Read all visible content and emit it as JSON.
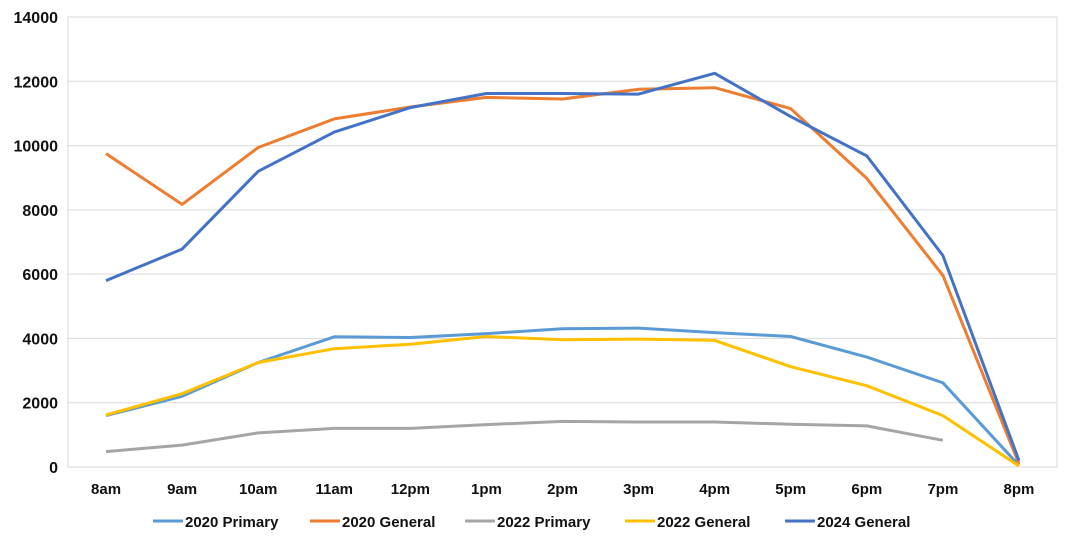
{
  "chart_data": {
    "type": "line",
    "title": "",
    "xlabel": "",
    "ylabel": "",
    "ylim": [
      0,
      14000
    ],
    "yticks": [
      0,
      2000,
      4000,
      6000,
      8000,
      10000,
      12000,
      14000
    ],
    "grid": true,
    "legend_position": "bottom",
    "categories": [
      "8am",
      "9am",
      "10am",
      "11am",
      "12pm",
      "1pm",
      "2pm",
      "3pm",
      "4pm",
      "5pm",
      "6pm",
      "7pm",
      "8pm"
    ],
    "series": [
      {
        "name": "2020 Primary",
        "color": "#5B9BD5",
        "values": [
          1600,
          2200,
          3250,
          4050,
          4030,
          4150,
          4300,
          4320,
          4180,
          4060,
          3420,
          2620,
          50
        ]
      },
      {
        "name": "2020 General",
        "color": "#ED7D31",
        "values": [
          9750,
          8170,
          9940,
          10830,
          11200,
          11500,
          11450,
          11750,
          11800,
          11150,
          8980,
          5960,
          100
        ]
      },
      {
        "name": "2022 Primary",
        "color": "#A5A5A5",
        "values": [
          480,
          680,
          1060,
          1200,
          1200,
          1320,
          1420,
          1400,
          1400,
          1330,
          1280,
          830,
          null
        ]
      },
      {
        "name": "2022 General",
        "color": "#FFC000",
        "values": [
          1620,
          2280,
          3250,
          3680,
          3820,
          4060,
          3960,
          3980,
          3940,
          3120,
          2530,
          1600,
          30
        ]
      },
      {
        "name": "2024 General",
        "color": "#4472C4",
        "values": [
          5800,
          6780,
          9200,
          10420,
          11180,
          11620,
          11620,
          11600,
          12250,
          10900,
          9680,
          6580,
          200
        ]
      }
    ]
  }
}
